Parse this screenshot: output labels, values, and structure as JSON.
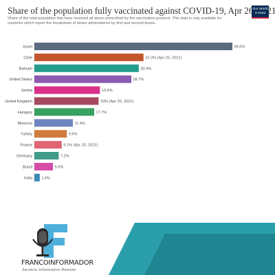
{
  "header": {
    "title": "Share of the population fully vaccinated against COVID-19, Apr 26, 2021",
    "subtitle_line1": "Share of the total population that have received all doses prescribed by the vaccination protocol. This data is only available for",
    "subtitle_line2": "countries which report the breakdown of doses administered by first and second doses.",
    "logo_line1": "Our World",
    "logo_line2": "in Data"
  },
  "branding": {
    "name": "FRANCOINFORMADOR",
    "tagline": "Servicio Informativo Remoto"
  },
  "colors": {
    "logo_bg": "#0b2d55",
    "logo_accent": "#c9213f",
    "teal_panel": "#2a9fab",
    "teal_panel_dark": "#1f8590",
    "brand_blue": "#3aa6d6"
  },
  "chart_data": {
    "type": "bar",
    "orientation": "horizontal",
    "title": "Share of the population fully vaccinated against COVID-19, Apr 26, 2021",
    "xlim": [
      0,
      60
    ],
    "unit": "%",
    "categories": [
      "Israel",
      "Chile",
      "Bahrain",
      "United States",
      "Serbia",
      "United Kingdom",
      "Hungary",
      "Morocco",
      "Turkey",
      "France",
      "Germany",
      "Brazil",
      "India"
    ],
    "values": [
      58.6,
      32.3,
      30.9,
      28.7,
      19.4,
      19.0,
      17.7,
      11.4,
      9.6,
      8.1,
      7.2,
      5.5,
      1.6
    ],
    "labels": [
      "58.6%",
      "32.3% (Apr 25, 2021)",
      "30.9%",
      "28.7%",
      "19.4%",
      "19% (Apr 25, 2021)",
      "17.7%",
      "11.4%",
      "9.6%",
      "8.1% (Apr 25, 2021)",
      "7.2%",
      "5.5%",
      "1.6%"
    ],
    "colors": [
      "#5b6b7f",
      "#c4562c",
      "#249c8d",
      "#8c5ab0",
      "#d9308a",
      "#a54a5e",
      "#38a060",
      "#6d86c2",
      "#d07b3b",
      "#e06676",
      "#409b8a",
      "#d64aa8",
      "#3a8ab8"
    ]
  }
}
